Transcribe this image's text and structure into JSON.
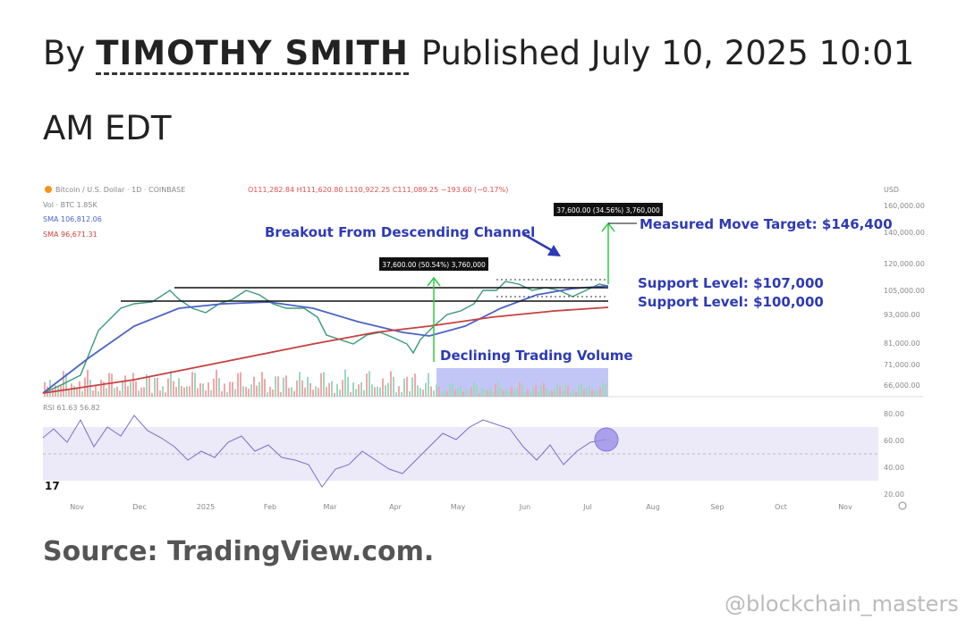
{
  "byline": {
    "by": "By",
    "author": "TIMOTHY SMITH",
    "published": "Published July 10, 2025 10:01 AM EDT"
  },
  "chart_image": {
    "header": "Bitcoin / U.S. Dollar · 1D · COINBASE",
    "ohlc": "O111,282.84 H111,620.80 L110,922.25 C111,089.25 −193.60 (−0.17%)",
    "legend": [
      "Vol · BTC  1.85K",
      "SMA  106,812.06",
      "SMA  96,671.31"
    ],
    "currency": "USD",
    "price_axis": [
      "160,000.00",
      "140,000.00",
      "120,000.00",
      "105,000.00",
      "93,000.00",
      "81,000.00",
      "71,000.00",
      "66,000.00"
    ],
    "rsi_label": "RSI  61.63  56.82",
    "rsi_axis": [
      "80.00",
      "60.00",
      "40.00",
      "20.00"
    ],
    "months": [
      "Nov",
      "Dec",
      "2025",
      "Feb",
      "Mar",
      "Apr",
      "May",
      "Jun",
      "Jul",
      "Aug",
      "Sep",
      "Oct",
      "Nov"
    ],
    "annotations": {
      "breakout": "Breakout From Descending Channel",
      "target": "Measured Move Target: $146,400",
      "support_1": "Support Level: $107,000",
      "support_2": "Support Level: $100,000",
      "volume": "Declining Trading Volume"
    },
    "measure_boxes": [
      "37,600.00 (50.54%) 3,760,000",
      "37,600.00 (34.56%) 3,760,000"
    ]
  },
  "source": "Source: TradingView.com.",
  "watermark": "@blockchain_masters"
}
